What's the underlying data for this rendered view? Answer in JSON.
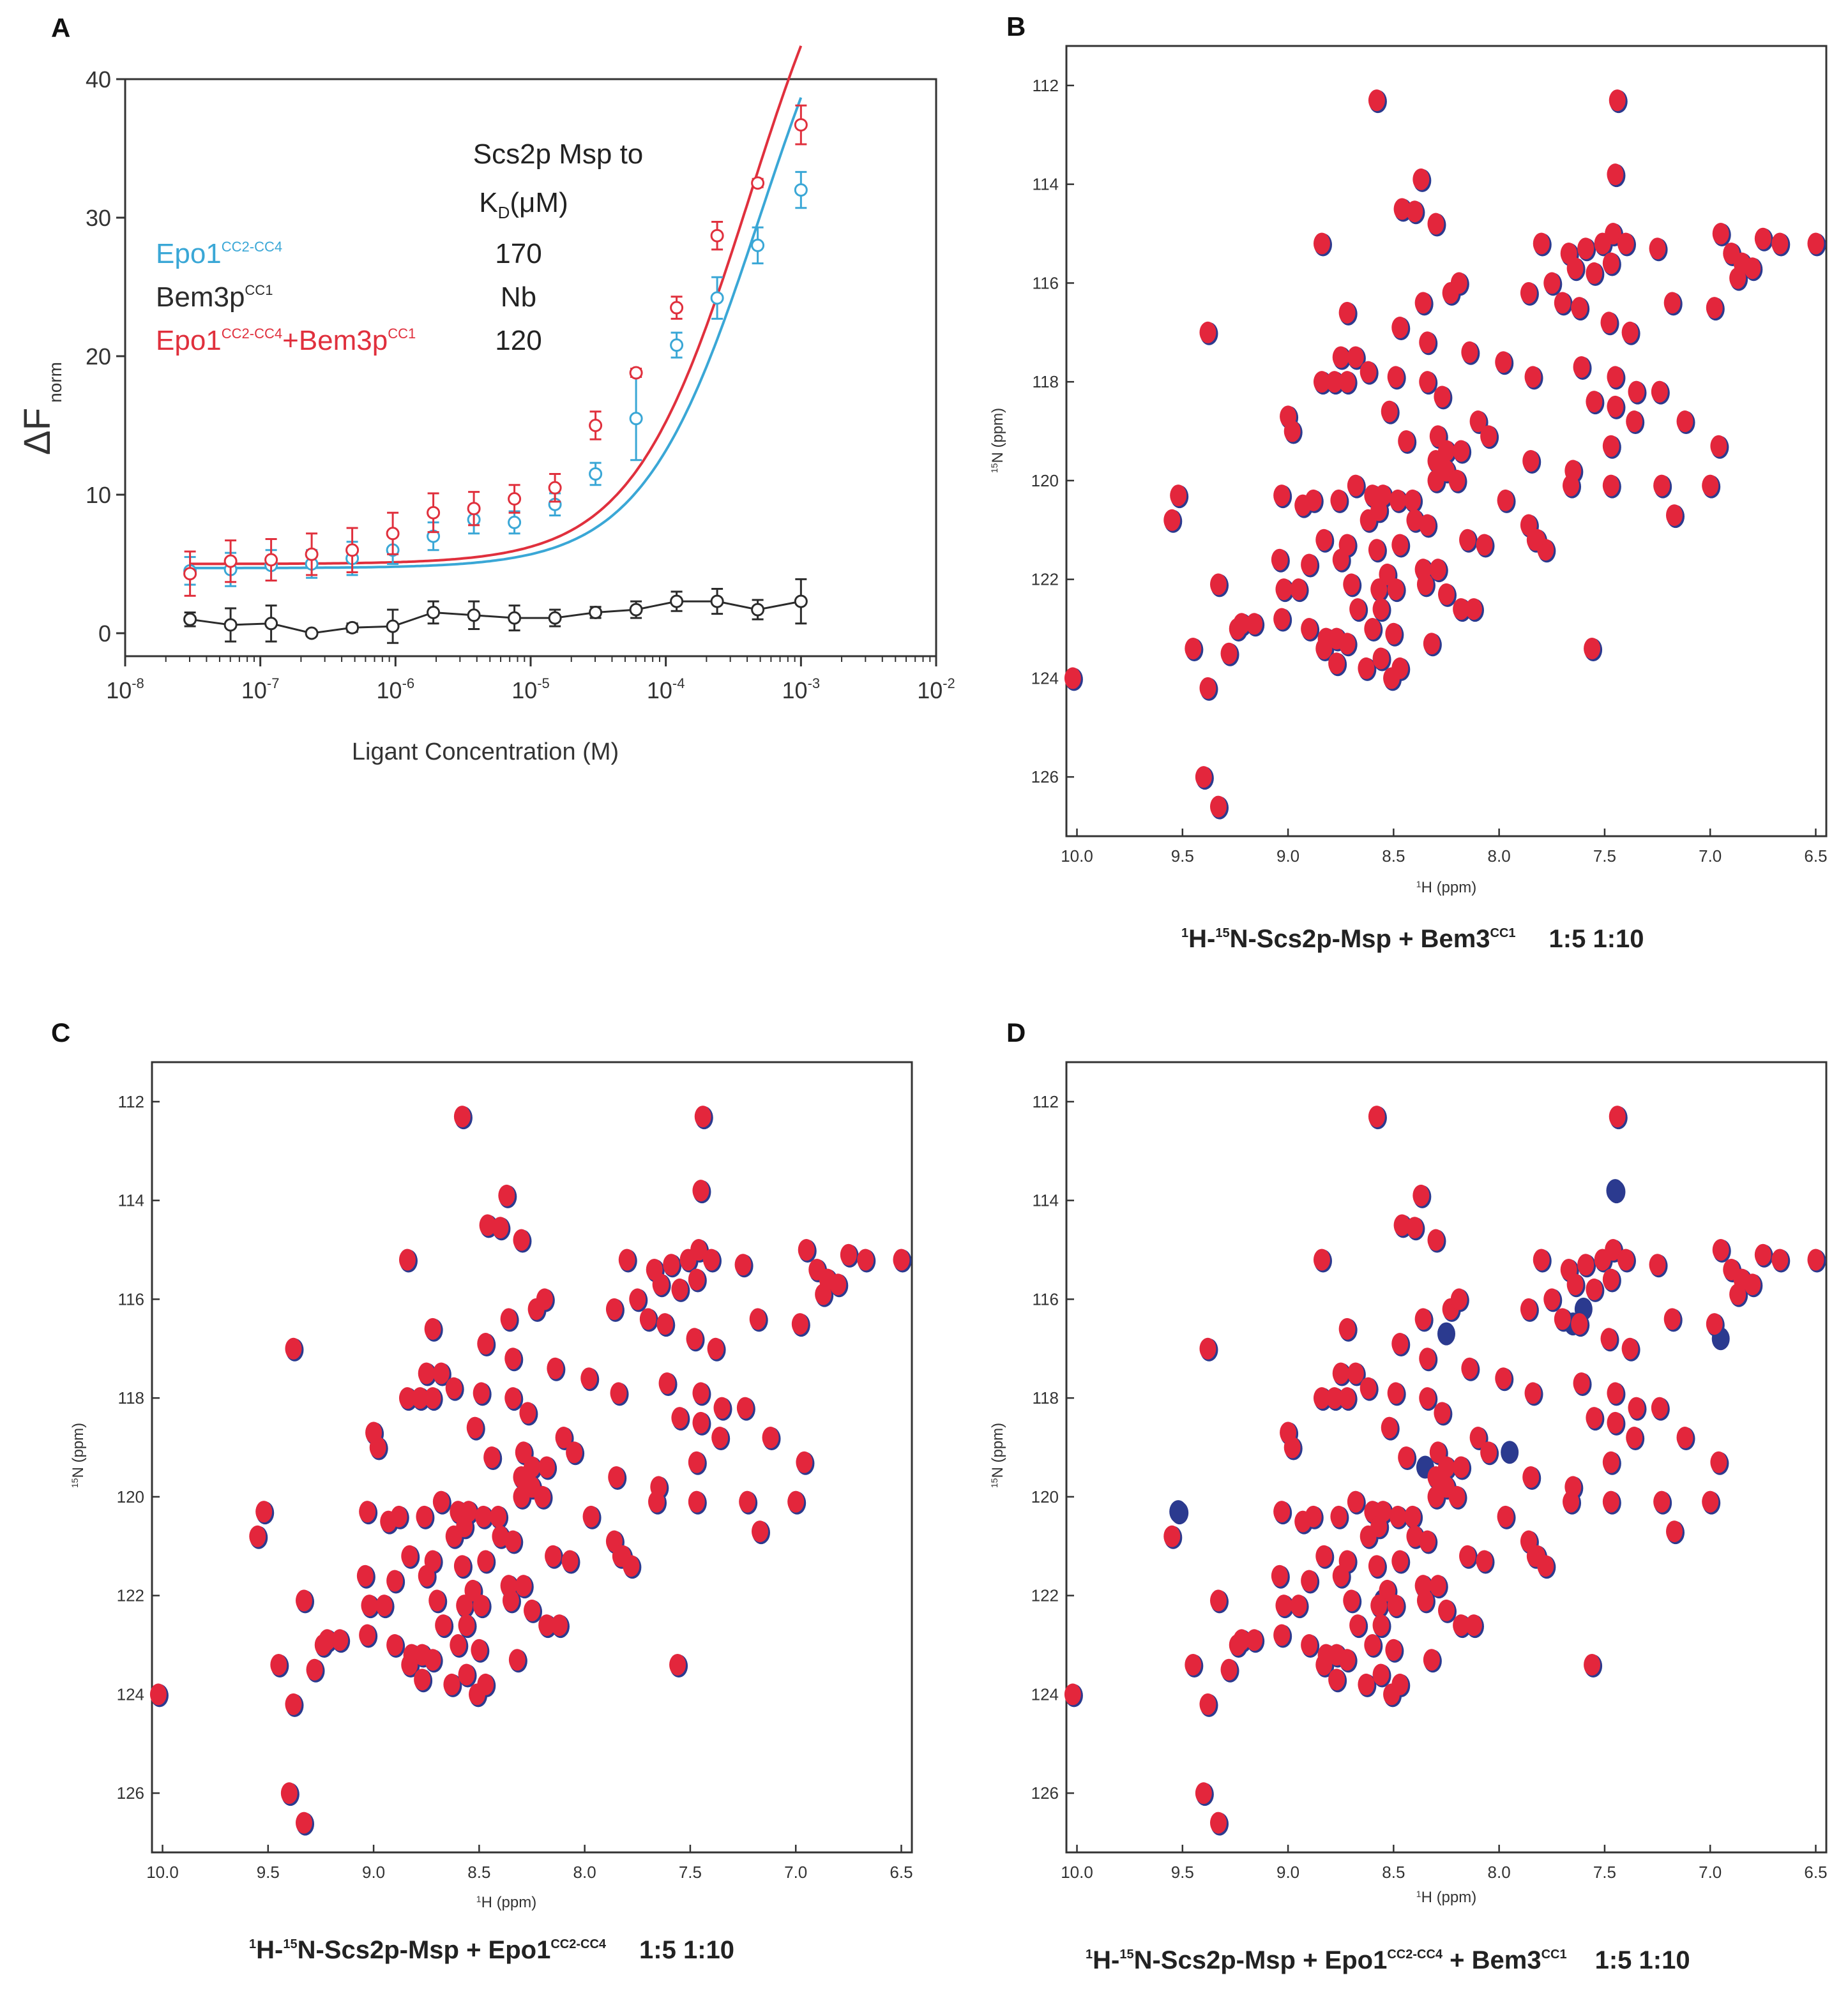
{
  "chart_data": [
    {
      "panel": "A",
      "type": "line",
      "xscale": "log",
      "xlabel": "Ligant Concentration (M)",
      "ylabel_main": "ΔF",
      "ylabel_sub": "norm",
      "xlim_exp": [
        -8,
        -2
      ],
      "xtick_base": "10",
      "xtick_exponents": [
        "-8",
        "-7",
        "-6",
        "-5",
        "-4",
        "-3",
        "-2"
      ],
      "ylim": [
        0,
        40
      ],
      "yticks": [
        "0",
        "10",
        "20",
        "30",
        "40"
      ],
      "table_title": "Scs2p Msp to",
      "kd_header": {
        "main": "K",
        "sub": "D",
        "rest": "(μM)"
      },
      "series": [
        {
          "key": "epo",
          "name_main": "Epo1",
          "name_sup": "CC2-CC4",
          "kd": "170",
          "color": "#3aa7d6",
          "x_exp": [
            -7.52,
            -7.22,
            -6.92,
            -6.62,
            -6.32,
            -6.02,
            -5.72,
            -5.42,
            -5.12,
            -4.82,
            -4.52,
            -4.22,
            -3.92,
            -3.62,
            -3.32,
            -3.0
          ],
          "y": [
            4.5,
            4.6,
            4.9,
            5.0,
            5.4,
            6.0,
            7.0,
            8.2,
            8.0,
            9.3,
            11.5,
            15.5,
            20.8,
            24.2,
            28.0,
            32.0
          ],
          "err": [
            1.0,
            1.2,
            1.1,
            1.0,
            1.2,
            1.0,
            1.0,
            1.0,
            0.8,
            0.8,
            0.8,
            3.0,
            0.9,
            1.5,
            1.3,
            1.3
          ],
          "fit": {
            "base": 4.7,
            "top": 51.0,
            "log_ec50": -3.3
          }
        },
        {
          "key": "bem",
          "name_main": "Bem3p",
          "name_sup": "CC1",
          "kd": "Nb",
          "color": "#2b2b2b",
          "x_exp": [
            -7.52,
            -7.22,
            -6.92,
            -6.62,
            -6.32,
            -6.02,
            -5.72,
            -5.42,
            -5.12,
            -4.82,
            -4.52,
            -4.22,
            -3.92,
            -3.62,
            -3.32,
            -3.0
          ],
          "y": [
            1.0,
            0.6,
            0.7,
            0.0,
            0.4,
            0.5,
            1.5,
            1.3,
            1.1,
            1.1,
            1.5,
            1.7,
            2.3,
            2.3,
            1.7,
            2.3
          ],
          "err": [
            0.5,
            1.2,
            1.3,
            0.2,
            0.3,
            1.2,
            0.8,
            1.0,
            0.9,
            0.6,
            0.4,
            0.6,
            0.7,
            0.9,
            0.7,
            1.6
          ]
        },
        {
          "key": "both",
          "name_main": "Epo1",
          "name_sup": "CC2-CC4",
          "name_plus": "+Bem3p",
          "name_sup2": "CC1",
          "kd": "120",
          "color": "#e0303d",
          "x_exp": [
            -7.52,
            -7.22,
            -6.92,
            -6.62,
            -6.32,
            -6.02,
            -5.72,
            -5.42,
            -5.12,
            -4.82,
            -4.52,
            -4.22,
            -3.92,
            -3.62,
            -3.32,
            -3.0
          ],
          "y": [
            4.3,
            5.2,
            5.3,
            5.7,
            6.0,
            7.2,
            8.7,
            9.0,
            9.7,
            10.5,
            15.0,
            18.8,
            23.5,
            28.7,
            32.5,
            36.7
          ],
          "err": [
            1.6,
            1.5,
            1.5,
            1.5,
            1.6,
            1.5,
            1.4,
            1.2,
            1.0,
            1.0,
            1.0,
            0.3,
            0.8,
            1.0,
            0.3,
            1.4
          ],
          "fit": {
            "base": 5.0,
            "top": 53.0,
            "log_ec50": -3.38
          }
        }
      ]
    },
    {
      "panel": "B",
      "type": "scatter",
      "title_type": "2D 1H-15N HSQC overlay",
      "xlabel_sup": "1",
      "xlabel": "H (ppm)",
      "ylabel_sup": "15",
      "ylabel": "N (ppm)",
      "xlim": [
        10.05,
        6.45
      ],
      "ylim": [
        111.2,
        127.2
      ],
      "xticks": [
        "10.0",
        "9.5",
        "9.0",
        "8.5",
        "8.0",
        "7.5",
        "7.0",
        "6.5"
      ],
      "yticks": [
        "112",
        "114",
        "116",
        "118",
        "120",
        "122",
        "124",
        "126"
      ],
      "caption_sup1": "1",
      "caption_a": "H-",
      "caption_sup2": "15",
      "caption_b": "N-Scs2p-Msp + Bem3",
      "caption_sup3": "CC1",
      "ratios": "1:5  1:10",
      "colors": {
        "ratio_1_5": "#2b3a8f",
        "ratio_1_10": "#e3263c"
      },
      "shifted_peaks": []
    },
    {
      "panel": "C",
      "type": "scatter",
      "title_type": "2D 1H-15N HSQC overlay",
      "xlabel_sup": "1",
      "xlabel": "H (ppm)",
      "ylabel_sup": "15",
      "ylabel": "N (ppm)",
      "xlim": [
        10.05,
        6.45
      ],
      "ylim": [
        111.2,
        127.2
      ],
      "xticks": [
        "10.0",
        "9.5",
        "9.0",
        "8.5",
        "8.0",
        "7.5",
        "7.0",
        "6.5"
      ],
      "yticks": [
        "112",
        "114",
        "116",
        "118",
        "120",
        "122",
        "124",
        "126"
      ],
      "caption_sup1": "1",
      "caption_a": "H-",
      "caption_sup2": "15",
      "caption_b": "N-Scs2p-Msp + Epo1",
      "caption_sup3": "CC2-CC4",
      "ratios": "1:5  1:10",
      "colors": {
        "ratio_1_5": "#2b3a8f",
        "ratio_1_10": "#e3263c"
      },
      "shifted_peaks": []
    },
    {
      "panel": "D",
      "type": "scatter",
      "title_type": "2D 1H-15N HSQC overlay",
      "xlabel_sup": "1",
      "xlabel": "H (ppm)",
      "ylabel_sup": "15",
      "ylabel": "N (ppm)",
      "xlim": [
        10.05,
        6.45
      ],
      "ylim": [
        111.2,
        127.2
      ],
      "xticks": [
        "10.0",
        "9.5",
        "9.0",
        "8.5",
        "8.0",
        "7.5",
        "7.0",
        "6.5"
      ],
      "yticks": [
        "112",
        "114",
        "116",
        "118",
        "120",
        "122",
        "124",
        "126"
      ],
      "caption_sup1": "1",
      "caption_a": "H-",
      "caption_sup2": "15",
      "caption_b": "N-Scs2p-Msp + Epo1",
      "caption_sup3": "CC2-CC4",
      "caption_c": " + Bem3",
      "caption_sup4": "CC1",
      "ratios": "1:5  1:10",
      "colors": {
        "ratio_1_5": "#2b3a8f",
        "ratio_1_10": "#e3263c"
      },
      "shifted_peaks": [
        [
          7.45,
          113.8
        ],
        [
          7.65,
          116.5
        ],
        [
          7.95,
          119.1
        ],
        [
          9.52,
          120.3
        ],
        [
          8.25,
          116.7
        ],
        [
          8.35,
          119.4
        ],
        [
          7.6,
          116.2
        ],
        [
          8.55,
          122.1
        ],
        [
          6.95,
          116.8
        ]
      ]
    }
  ],
  "nmr_peaks": [
    [
      8.58,
      112.3
    ],
    [
      7.44,
      112.3
    ],
    [
      7.45,
      113.8
    ],
    [
      8.37,
      113.9
    ],
    [
      8.46,
      114.5
    ],
    [
      8.4,
      114.55
    ],
    [
      8.3,
      114.8
    ],
    [
      8.84,
      115.2
    ],
    [
      7.8,
      115.2
    ],
    [
      7.67,
      115.4
    ],
    [
      7.59,
      115.3
    ],
    [
      7.51,
      115.2
    ],
    [
      7.46,
      115.0
    ],
    [
      7.4,
      115.2
    ],
    [
      7.25,
      115.3
    ],
    [
      6.95,
      115.0
    ],
    [
      6.9,
      115.4
    ],
    [
      6.85,
      115.6
    ],
    [
      6.8,
      115.7
    ],
    [
      6.87,
      115.9
    ],
    [
      6.75,
      115.1
    ],
    [
      6.67,
      115.2
    ],
    [
      6.5,
      115.2
    ],
    [
      7.64,
      115.7
    ],
    [
      7.55,
      115.8
    ],
    [
      7.47,
      115.6
    ],
    [
      8.36,
      116.4
    ],
    [
      8.23,
      116.2
    ],
    [
      8.19,
      116.0
    ],
    [
      7.86,
      116.2
    ],
    [
      7.75,
      116.0
    ],
    [
      7.7,
      116.4
    ],
    [
      7.62,
      116.5
    ],
    [
      7.48,
      116.8
    ],
    [
      7.38,
      117.0
    ],
    [
      7.18,
      116.4
    ],
    [
      6.98,
      116.5
    ],
    [
      8.72,
      116.6
    ],
    [
      9.38,
      117.0
    ],
    [
      8.47,
      116.9
    ],
    [
      8.34,
      117.2
    ],
    [
      8.75,
      117.5
    ],
    [
      8.68,
      117.5
    ],
    [
      8.14,
      117.4
    ],
    [
      8.62,
      117.8
    ],
    [
      8.49,
      117.9
    ],
    [
      8.34,
      118.0
    ],
    [
      7.98,
      117.6
    ],
    [
      7.84,
      117.9
    ],
    [
      7.61,
      117.7
    ],
    [
      7.45,
      117.9
    ],
    [
      7.35,
      118.2
    ],
    [
      7.24,
      118.2
    ],
    [
      8.84,
      118.0
    ],
    [
      8.78,
      118.0
    ],
    [
      8.72,
      118.0
    ],
    [
      8.27,
      118.3
    ],
    [
      8.52,
      118.6
    ],
    [
      9.0,
      118.7
    ],
    [
      8.1,
      118.8
    ],
    [
      7.55,
      118.4
    ],
    [
      7.45,
      118.5
    ],
    [
      7.36,
      118.8
    ],
    [
      7.12,
      118.8
    ],
    [
      8.98,
      119.0
    ],
    [
      8.44,
      119.2
    ],
    [
      8.29,
      119.1
    ],
    [
      8.3,
      119.6
    ],
    [
      8.25,
      119.4
    ],
    [
      8.18,
      119.4
    ],
    [
      8.05,
      119.1
    ],
    [
      7.85,
      119.6
    ],
    [
      7.47,
      119.3
    ],
    [
      6.96,
      119.3
    ],
    [
      8.3,
      120.0
    ],
    [
      8.25,
      119.8
    ],
    [
      8.2,
      120.0
    ],
    [
      7.65,
      119.8
    ],
    [
      9.52,
      120.3
    ],
    [
      8.68,
      120.1
    ],
    [
      7.66,
      120.1
    ],
    [
      7.47,
      120.1
    ],
    [
      7.23,
      120.1
    ],
    [
      7.0,
      120.1
    ],
    [
      9.03,
      120.3
    ],
    [
      8.88,
      120.4
    ],
    [
      8.76,
      120.4
    ],
    [
      8.6,
      120.3
    ],
    [
      8.55,
      120.3
    ],
    [
      8.48,
      120.4
    ],
    [
      8.41,
      120.4
    ],
    [
      7.97,
      120.4
    ],
    [
      9.55,
      120.8
    ],
    [
      8.93,
      120.5
    ],
    [
      8.62,
      120.8
    ],
    [
      8.57,
      120.6
    ],
    [
      8.4,
      120.8
    ],
    [
      8.34,
      120.9
    ],
    [
      7.86,
      120.9
    ],
    [
      7.82,
      121.2
    ],
    [
      7.17,
      120.7
    ],
    [
      8.83,
      121.2
    ],
    [
      8.72,
      121.3
    ],
    [
      8.58,
      121.4
    ],
    [
      8.47,
      121.3
    ],
    [
      8.15,
      121.2
    ],
    [
      8.07,
      121.3
    ],
    [
      7.78,
      121.4
    ],
    [
      7.83,
      121.2
    ],
    [
      9.04,
      121.6
    ],
    [
      8.9,
      121.7
    ],
    [
      8.75,
      121.6
    ],
    [
      8.53,
      121.9
    ],
    [
      8.36,
      121.8
    ],
    [
      8.29,
      121.8
    ],
    [
      8.49,
      122.2
    ],
    [
      8.35,
      122.1
    ],
    [
      8.25,
      122.3
    ],
    [
      9.33,
      122.1
    ],
    [
      8.95,
      122.2
    ],
    [
      8.7,
      122.1
    ],
    [
      8.57,
      122.2
    ],
    [
      9.02,
      122.2
    ],
    [
      9.22,
      122.9
    ],
    [
      9.16,
      122.9
    ],
    [
      9.03,
      122.8
    ],
    [
      8.67,
      122.6
    ],
    [
      8.18,
      122.6
    ],
    [
      8.12,
      122.6
    ],
    [
      8.56,
      122.6
    ],
    [
      9.24,
      123.0
    ],
    [
      8.9,
      123.0
    ],
    [
      8.82,
      123.2
    ],
    [
      8.77,
      123.2
    ],
    [
      8.6,
      123.0
    ],
    [
      8.5,
      123.1
    ],
    [
      9.45,
      123.4
    ],
    [
      9.28,
      123.5
    ],
    [
      8.83,
      123.4
    ],
    [
      8.72,
      123.3
    ],
    [
      8.56,
      123.6
    ],
    [
      8.32,
      123.3
    ],
    [
      8.63,
      123.8
    ],
    [
      8.47,
      123.8
    ],
    [
      7.56,
      123.4
    ],
    [
      8.77,
      123.7
    ],
    [
      10.02,
      124.0
    ],
    [
      9.38,
      124.2
    ],
    [
      8.51,
      124.0
    ],
    [
      9.4,
      126.0
    ],
    [
      9.33,
      126.6
    ]
  ]
}
